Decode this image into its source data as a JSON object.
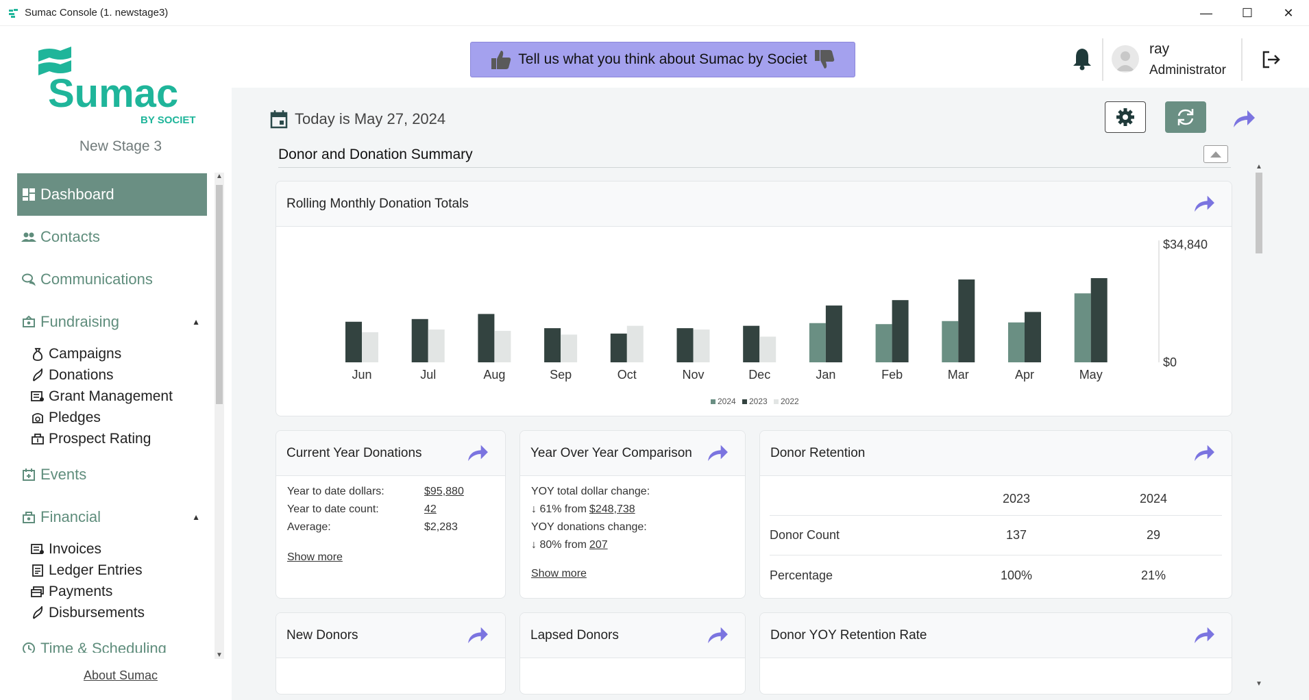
{
  "window": {
    "title": "Sumac Console (1. newstage3)",
    "controls": [
      "—",
      "☐",
      "✕"
    ]
  },
  "sidebar": {
    "logo": {
      "brand": "Sumac",
      "tagline": "BY SOCIET"
    },
    "stage": "New Stage 3",
    "items": [
      {
        "label": "Dashboard",
        "icon": "dashboard-icon",
        "active": true
      },
      {
        "label": "Contacts",
        "icon": "contacts-icon"
      },
      {
        "label": "Communications",
        "icon": "communications-icon"
      },
      {
        "label": "Fundraising",
        "icon": "fundraising-icon",
        "expanded": true,
        "children": [
          {
            "label": "Campaigns",
            "icon": "campaigns-icon"
          },
          {
            "label": "Donations",
            "icon": "donations-icon"
          },
          {
            "label": "Grant Management",
            "icon": "grant-icon"
          },
          {
            "label": "Pledges",
            "icon": "pledges-icon"
          },
          {
            "label": "Prospect Rating",
            "icon": "prospect-icon"
          }
        ]
      },
      {
        "label": "Events",
        "icon": "events-icon"
      },
      {
        "label": "Financial",
        "icon": "financial-icon",
        "expanded": true,
        "children": [
          {
            "label": "Invoices",
            "icon": "invoices-icon"
          },
          {
            "label": "Ledger Entries",
            "icon": "ledger-icon"
          },
          {
            "label": "Payments",
            "icon": "payments-icon"
          },
          {
            "label": "Disbursements",
            "icon": "disbursements-icon"
          }
        ]
      },
      {
        "label": "Time & Scheduling",
        "icon": "time-icon"
      }
    ],
    "about": "About Sumac"
  },
  "header": {
    "feedback": "Tell us what you think about Sumac by Societ",
    "user_name": "ray",
    "user_role": "Administrator"
  },
  "main": {
    "today": "Today is May 27, 2024",
    "section_title": "Donor and Donation Summary",
    "rolling": {
      "title": "Rolling Monthly Donation Totals"
    },
    "current_year": {
      "title": "Current Year Donations",
      "rows": [
        {
          "k": "Year to date dollars:",
          "v": "$95,880",
          "link": true
        },
        {
          "k": "Year to date count:",
          "v": "42",
          "link": true
        },
        {
          "k": "Average:",
          "v": "$2,283",
          "link": false
        }
      ],
      "show_more": "Show more"
    },
    "yoy": {
      "title": "Year Over Year Comparison",
      "line1": "YOY total dollar change:",
      "line2_prefix": "↓ 61% from ",
      "line2_link": "$248,738",
      "line3": "YOY donations change:",
      "line4_prefix": "↓ 80% from ",
      "line4_link": "207",
      "show_more": "Show more"
    },
    "retention": {
      "title": "Donor Retention",
      "cols": [
        "",
        "2023",
        "2024"
      ],
      "rows": [
        [
          "Donor Count",
          "137",
          "29"
        ],
        [
          "Percentage",
          "100%",
          "21%"
        ]
      ]
    },
    "new_donors": {
      "title": "New Donors"
    },
    "lapsed_donors": {
      "title": "Lapsed Donors"
    },
    "yoy_retention_rate": {
      "title": "Donor YOY Retention Rate"
    }
  },
  "colors": {
    "c2024": "#6a8f83",
    "c2023": "#334340",
    "c2022": "#e2e5e4",
    "accent": "#6a8f83",
    "share": "#7b74e0"
  },
  "chart_data": {
    "type": "bar",
    "title": "Rolling Monthly Donation Totals",
    "categories": [
      "Jun",
      "Jul",
      "Aug",
      "Sep",
      "Oct",
      "Nov",
      "Dec",
      "Jan",
      "Feb",
      "Mar",
      "Apr",
      "May"
    ],
    "series": [
      {
        "name": "2024",
        "values": [
          null,
          null,
          null,
          null,
          null,
          null,
          null,
          11600,
          11300,
          12200,
          11800,
          20400
        ]
      },
      {
        "name": "2023",
        "values": [
          12000,
          12800,
          14300,
          10100,
          8500,
          10100,
          10800,
          16800,
          18400,
          24500,
          14900,
          24900
        ]
      },
      {
        "name": "2022",
        "values": [
          8900,
          9700,
          9300,
          8200,
          10800,
          9700,
          7600,
          null,
          null,
          null,
          null,
          null
        ]
      }
    ],
    "ylim": [
      0,
      34840
    ],
    "yticks": [
      "$34,840",
      "$0"
    ],
    "legend": "bottom-center",
    "grid": false
  }
}
